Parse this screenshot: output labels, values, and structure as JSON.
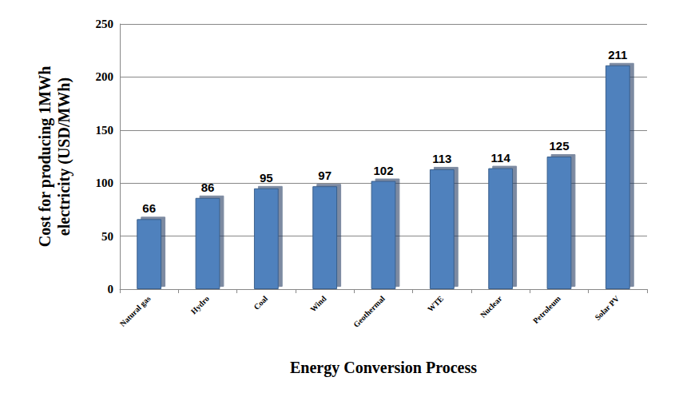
{
  "chart_data": {
    "type": "bar",
    "x_label": "Energy Conversion Process",
    "y_label": "Cost for producing 1MWh\nelectricity (USD/MWh)",
    "categories": [
      "Natural gas",
      "Hydro",
      "Coal",
      "Wind",
      "Geothermal",
      "WTE",
      "Nuclear",
      "Petroleum",
      "Solar PV"
    ],
    "values": [
      66,
      86,
      95,
      97,
      102,
      113,
      114,
      125,
      211
    ],
    "color": "#4f81bd",
    "ylim": [
      0,
      250
    ],
    "yticks": [
      0,
      50,
      100,
      150,
      200,
      250
    ],
    "grid": true,
    "data_labels": true
  }
}
